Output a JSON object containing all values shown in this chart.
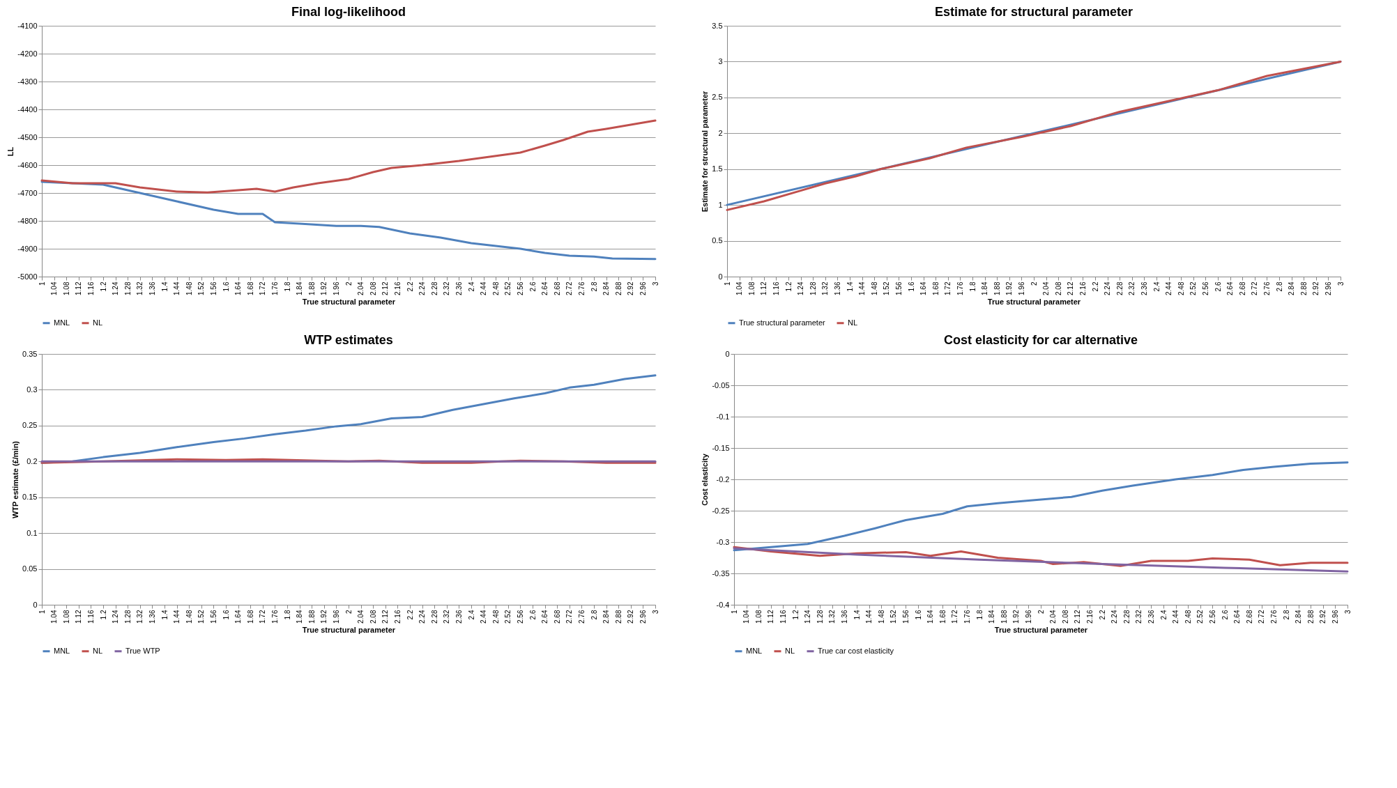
{
  "chart_data": [
    {
      "type": "line",
      "title": "Final log-likelihood",
      "xlabel": "True structural parameter",
      "ylabel": "LL",
      "xlim": [
        1,
        3
      ],
      "xticks": [
        1,
        1.04,
        1.08,
        1.12,
        1.16,
        1.2,
        1.24,
        1.28,
        1.32,
        1.36,
        1.4,
        1.44,
        1.48,
        1.52,
        1.56,
        1.6,
        1.64,
        1.68,
        1.72,
        1.76,
        1.8,
        1.84,
        1.88,
        1.92,
        1.96,
        2,
        2.04,
        2.08,
        2.12,
        2.16,
        2.2,
        2.24,
        2.28,
        2.32,
        2.36,
        2.4,
        2.44,
        2.48,
        2.52,
        2.56,
        2.6,
        2.64,
        2.68,
        2.72,
        2.76,
        2.8,
        2.84,
        2.88,
        2.92,
        2.96,
        3
      ],
      "ylim": [
        -5000,
        -4100
      ],
      "yticks": [
        -5000,
        -4900,
        -4800,
        -4700,
        -4600,
        -4500,
        -4400,
        -4300,
        -4200,
        -4100
      ],
      "grid": "y",
      "legend": "bottom",
      "series": [
        {
          "name": "MNL",
          "color": "#4f81bd",
          "x": [
            1,
            1.2,
            1.32,
            1.44,
            1.56,
            1.64,
            1.72,
            1.76,
            1.84,
            1.96,
            2.04,
            2.1,
            2.2,
            2.3,
            2.4,
            2.48,
            2.56,
            2.64,
            2.72,
            2.8,
            2.86,
            3
          ],
          "values": [
            -4660,
            -4670,
            -4700,
            -4730,
            -4760,
            -4775,
            -4775,
            -4805,
            -4810,
            -4818,
            -4818,
            -4822,
            -4845,
            -4860,
            -4880,
            -4890,
            -4900,
            -4915,
            -4925,
            -4928,
            -4935,
            -4937
          ]
        },
        {
          "name": "NL",
          "color": "#c0504d",
          "x": [
            1,
            1.1,
            1.24,
            1.32,
            1.44,
            1.54,
            1.64,
            1.7,
            1.76,
            1.82,
            1.9,
            2,
            2.08,
            2.14,
            2.24,
            2.36,
            2.46,
            2.56,
            2.64,
            2.7,
            2.78,
            2.84,
            2.92,
            3
          ],
          "values": [
            -4655,
            -4665,
            -4665,
            -4680,
            -4695,
            -4698,
            -4690,
            -4685,
            -4695,
            -4680,
            -4665,
            -4650,
            -4625,
            -4610,
            -4600,
            -4585,
            -4570,
            -4555,
            -4530,
            -4510,
            -4480,
            -4470,
            -4455,
            -4440
          ]
        }
      ]
    },
    {
      "type": "line",
      "title": "Estimate for structural parameter",
      "xlabel": "True structural parameter",
      "ylabel": "Estimate for structural parameter",
      "xlim": [
        1,
        3
      ],
      "xticks": [
        1,
        1.04,
        1.08,
        1.12,
        1.16,
        1.2,
        1.24,
        1.28,
        1.32,
        1.36,
        1.4,
        1.44,
        1.48,
        1.52,
        1.56,
        1.6,
        1.64,
        1.68,
        1.72,
        1.76,
        1.8,
        1.84,
        1.88,
        1.92,
        1.96,
        2,
        2.04,
        2.08,
        2.12,
        2.16,
        2.2,
        2.24,
        2.28,
        2.32,
        2.36,
        2.4,
        2.44,
        2.48,
        2.52,
        2.56,
        2.6,
        2.64,
        2.68,
        2.72,
        2.76,
        2.8,
        2.84,
        2.88,
        2.92,
        2.96,
        3
      ],
      "ylim": [
        0,
        3.5
      ],
      "yticks": [
        0,
        0.5,
        1,
        1.5,
        2,
        2.5,
        3,
        3.5
      ],
      "grid": "y",
      "legend": "bottom",
      "series": [
        {
          "name": "True structural parameter",
          "color": "#4f81bd",
          "x": [
            1,
            2,
            3
          ],
          "values": [
            1,
            2,
            3
          ]
        },
        {
          "name": "NL",
          "color": "#c0504d",
          "x": [
            1,
            1.12,
            1.24,
            1.32,
            1.42,
            1.5,
            1.66,
            1.78,
            1.96,
            2.12,
            2.28,
            2.44,
            2.6,
            2.76,
            2.88,
            3
          ],
          "values": [
            0.93,
            1.05,
            1.2,
            1.3,
            1.4,
            1.5,
            1.65,
            1.8,
            1.95,
            2.1,
            2.3,
            2.45,
            2.6,
            2.8,
            2.9,
            3
          ]
        }
      ]
    },
    {
      "type": "line",
      "title": "WTP estimates",
      "xlabel": "True structural parameter",
      "ylabel": "WTP estimate (£/min)",
      "xlim": [
        1,
        3
      ],
      "xticks": [
        1,
        1.04,
        1.08,
        1.12,
        1.16,
        1.2,
        1.24,
        1.28,
        1.32,
        1.36,
        1.4,
        1.44,
        1.48,
        1.52,
        1.56,
        1.6,
        1.64,
        1.68,
        1.72,
        1.76,
        1.8,
        1.84,
        1.88,
        1.92,
        1.96,
        2,
        2.04,
        2.08,
        2.12,
        2.16,
        2.2,
        2.24,
        2.28,
        2.32,
        2.36,
        2.4,
        2.44,
        2.48,
        2.52,
        2.56,
        2.6,
        2.64,
        2.68,
        2.72,
        2.76,
        2.8,
        2.84,
        2.88,
        2.92,
        2.96,
        3
      ],
      "ylim": [
        0,
        0.35
      ],
      "yticks": [
        0,
        0.05,
        0.1,
        0.15,
        0.2,
        0.25,
        0.3,
        0.35
      ],
      "grid": "y",
      "legend": "bottom",
      "series": [
        {
          "name": "MNL",
          "color": "#4f81bd",
          "x": [
            1,
            1.1,
            1.2,
            1.32,
            1.44,
            1.56,
            1.66,
            1.76,
            1.86,
            1.96,
            2.04,
            2.14,
            2.24,
            2.34,
            2.44,
            2.54,
            2.64,
            2.72,
            2.8,
            2.9,
            3
          ],
          "values": [
            0.198,
            0.2,
            0.206,
            0.212,
            0.22,
            0.227,
            0.232,
            0.238,
            0.243,
            0.249,
            0.252,
            0.26,
            0.262,
            0.272,
            0.28,
            0.288,
            0.295,
            0.303,
            0.307,
            0.315,
            0.32
          ]
        },
        {
          "name": "NL",
          "color": "#c0504d",
          "x": [
            1,
            1.2,
            1.44,
            1.6,
            1.72,
            1.9,
            2,
            2.1,
            2.24,
            2.4,
            2.5,
            2.56,
            2.7,
            2.84,
            3
          ],
          "values": [
            0.198,
            0.2,
            0.203,
            0.202,
            0.203,
            0.201,
            0.2,
            0.201,
            0.198,
            0.198,
            0.2,
            0.201,
            0.2,
            0.198,
            0.198
          ]
        },
        {
          "name": "True WTP",
          "color": "#8064a2",
          "x": [
            1,
            3
          ],
          "values": [
            0.2,
            0.2
          ]
        }
      ]
    },
    {
      "type": "line",
      "title": "Cost elasticity for car alternative",
      "xlabel": "True structural parameter",
      "ylabel": "Cost elasticity",
      "xlim": [
        1,
        3
      ],
      "xticks": [
        1,
        1.04,
        1.08,
        1.12,
        1.16,
        1.2,
        1.24,
        1.28,
        1.32,
        1.36,
        1.4,
        1.44,
        1.48,
        1.52,
        1.56,
        1.6,
        1.64,
        1.68,
        1.72,
        1.76,
        1.8,
        1.84,
        1.88,
        1.92,
        1.96,
        2,
        2.04,
        2.08,
        2.12,
        2.16,
        2.2,
        2.24,
        2.28,
        2.32,
        2.36,
        2.4,
        2.44,
        2.48,
        2.52,
        2.56,
        2.6,
        2.64,
        2.68,
        2.72,
        2.76,
        2.8,
        2.84,
        2.88,
        2.92,
        2.96,
        3
      ],
      "ylim": [
        -0.4,
        0
      ],
      "yticks": [
        -0.4,
        -0.35,
        -0.3,
        -0.25,
        -0.2,
        -0.15,
        -0.1,
        -0.05,
        0
      ],
      "grid": "y",
      "legend": "bottom",
      "series": [
        {
          "name": "MNL",
          "color": "#4f81bd",
          "x": [
            1,
            1.12,
            1.24,
            1.36,
            1.46,
            1.56,
            1.68,
            1.76,
            1.86,
            1.98,
            2.1,
            2.2,
            2.3,
            2.44,
            2.56,
            2.66,
            2.76,
            2.88,
            3
          ],
          "values": [
            -0.313,
            -0.308,
            -0.303,
            -0.29,
            -0.278,
            -0.265,
            -0.255,
            -0.243,
            -0.238,
            -0.233,
            -0.228,
            -0.218,
            -0.21,
            -0.2,
            -0.193,
            -0.185,
            -0.18,
            -0.175,
            -0.173
          ]
        },
        {
          "name": "NL",
          "color": "#c0504d",
          "x": [
            1,
            1.12,
            1.28,
            1.4,
            1.56,
            1.64,
            1.74,
            1.86,
            2,
            2.04,
            2.14,
            2.26,
            2.36,
            2.48,
            2.56,
            2.68,
            2.78,
            2.88,
            3
          ],
          "values": [
            -0.308,
            -0.315,
            -0.322,
            -0.318,
            -0.316,
            -0.322,
            -0.315,
            -0.325,
            -0.33,
            -0.335,
            -0.332,
            -0.338,
            -0.33,
            -0.33,
            -0.326,
            -0.328,
            -0.337,
            -0.333,
            -0.333
          ]
        },
        {
          "name": "True car cost elasticity",
          "color": "#8064a2",
          "x": [
            1,
            1.4,
            1.8,
            2.2,
            2.6,
            3
          ],
          "values": [
            -0.31,
            -0.32,
            -0.328,
            -0.335,
            -0.341,
            -0.347
          ]
        }
      ]
    }
  ]
}
